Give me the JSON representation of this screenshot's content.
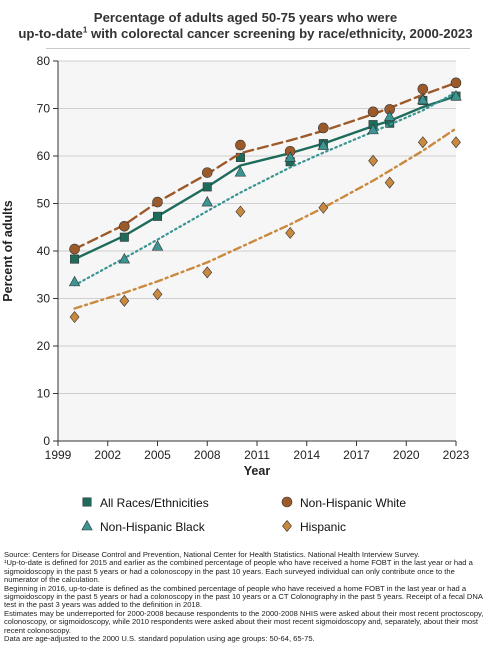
{
  "title": {
    "line1": "Percentage of adults aged 50-75 years who were",
    "line2_pre": "up-to-date",
    "line2_sup": "1",
    "line2_post": " with colorectal cancer screening by race/ethnicity, 2000-2023"
  },
  "notes": [
    "Source: Centers for Disease Control and Prevention, National Center for Health Statistics. National Health Interview Survey.",
    "¹Up-to-date is defined for 2015 and earlier as the combined percentage of people who have received a home FOBT in the last year or had a sigmoidoscopy in the past 5 years or had a colonoscopy in the past 10 years. Each surveyed individual can only contribute once to the numerator of the calculation.",
    "Beginning in 2016, up-to-date is defined as the combined percentage of people who have received a home FOBT in the last year or had a sigmoidoscopy in the past 5 years or had a colonoscopy in the past 10 years or a CT Colonography in the past 5 years. Receipt of a fecal DNA test in the past 3 years was added to the definition in 2018.",
    "Estimates may be underreported for 2000-2008 because respondents to the 2000-2008 NHIS were asked about their most recent proctoscopy, colonoscopy, or sigmoidoscopy, while 2010 respondents were asked about their most recent sigmoidoscopy and, separately, about their most recent colonoscopy.",
    "Data are age-adjusted to the 2000 U.S. standard population using age groups: 50-64, 65-75."
  ],
  "chart_data": {
    "type": "scatter",
    "xlabel": "Year",
    "ylabel": "Percent of adults",
    "xlim": [
      1999,
      2023
    ],
    "ylim": [
      0,
      80
    ],
    "xticks": [
      1999,
      2002,
      2005,
      2008,
      2011,
      2014,
      2017,
      2020,
      2023
    ],
    "yticks": [
      0,
      10,
      20,
      30,
      40,
      50,
      60,
      70,
      80
    ],
    "grid": "horizontal",
    "legend_position": "bottom",
    "series": [
      {
        "name": "All Races/Ethnicities",
        "color": "#1e6b5c",
        "marker": "square",
        "trend_style": "solid",
        "points": [
          [
            2000,
            38.3
          ],
          [
            2003,
            42.9
          ],
          [
            2005,
            47.3
          ],
          [
            2008,
            53.5
          ],
          [
            2010,
            59.7
          ],
          [
            2013,
            58.8
          ],
          [
            2015,
            62.6
          ],
          [
            2018,
            66.6
          ],
          [
            2019,
            66.9
          ],
          [
            2021,
            71.7
          ],
          [
            2023,
            72.6
          ]
        ],
        "trend": [
          [
            2000,
            38.3
          ],
          [
            2003,
            43.2
          ],
          [
            2005,
            47.3
          ],
          [
            2008,
            53.5
          ],
          [
            2010,
            58.0
          ],
          [
            2013,
            60.6
          ],
          [
            2015,
            62.6
          ],
          [
            2018,
            66.3
          ],
          [
            2019,
            67.4
          ],
          [
            2021,
            70.3
          ],
          [
            2023,
            72.6
          ]
        ]
      },
      {
        "name": "Non-Hispanic White",
        "color": "#9c5a2a",
        "marker": "circle",
        "trend_style": "dashed",
        "points": [
          [
            2000,
            40.4
          ],
          [
            2003,
            45.2
          ],
          [
            2005,
            50.3
          ],
          [
            2008,
            56.5
          ],
          [
            2010,
            62.3
          ],
          [
            2013,
            61.0
          ],
          [
            2015,
            65.9
          ],
          [
            2018,
            69.3
          ],
          [
            2019,
            69.8
          ],
          [
            2021,
            74.1
          ],
          [
            2023,
            75.4
          ]
        ],
        "trend": [
          [
            2000,
            40.4
          ],
          [
            2003,
            45.5
          ],
          [
            2005,
            50.3
          ],
          [
            2008,
            56.2
          ],
          [
            2010,
            60.6
          ],
          [
            2013,
            63.3
          ],
          [
            2015,
            65.3
          ],
          [
            2018,
            68.8
          ],
          [
            2019,
            70.1
          ],
          [
            2021,
            72.9
          ],
          [
            2023,
            75.4
          ]
        ]
      },
      {
        "name": "Non-Hispanic Black",
        "color": "#3a9593",
        "marker": "triangle",
        "trend_style": "dotted",
        "points": [
          [
            2000,
            33.5
          ],
          [
            2003,
            38.3
          ],
          [
            2005,
            41.0
          ],
          [
            2008,
            50.3
          ],
          [
            2010,
            56.6
          ],
          [
            2013,
            59.7
          ],
          [
            2015,
            62.2
          ],
          [
            2018,
            65.5
          ],
          [
            2019,
            68.3
          ],
          [
            2021,
            71.8
          ],
          [
            2023,
            72.6
          ]
        ],
        "trend": [
          [
            2000,
            32.8
          ],
          [
            2003,
            38.5
          ],
          [
            2005,
            42.4
          ],
          [
            2008,
            48.4
          ],
          [
            2010,
            52.3
          ],
          [
            2013,
            57.6
          ],
          [
            2015,
            60.7
          ],
          [
            2018,
            65.1
          ],
          [
            2019,
            66.6
          ],
          [
            2021,
            69.6
          ],
          [
            2023,
            73.4
          ]
        ]
      },
      {
        "name": "Hispanic",
        "color": "#c98a40",
        "marker": "diamond",
        "trend_style": "dashdot",
        "points": [
          [
            2000,
            26.1
          ],
          [
            2003,
            29.5
          ],
          [
            2005,
            30.9
          ],
          [
            2008,
            35.5
          ],
          [
            2010,
            48.3
          ],
          [
            2013,
            43.8
          ],
          [
            2015,
            49.1
          ],
          [
            2018,
            59.0
          ],
          [
            2019,
            54.4
          ],
          [
            2021,
            62.9
          ],
          [
            2023,
            62.9
          ]
        ],
        "trend": [
          [
            2000,
            27.9
          ],
          [
            2003,
            31.2
          ],
          [
            2005,
            33.6
          ],
          [
            2008,
            37.6
          ],
          [
            2010,
            40.8
          ],
          [
            2013,
            45.6
          ],
          [
            2015,
            49.1
          ],
          [
            2018,
            54.8
          ],
          [
            2019,
            56.9
          ],
          [
            2021,
            61.1
          ],
          [
            2023,
            65.8
          ]
        ]
      }
    ]
  }
}
